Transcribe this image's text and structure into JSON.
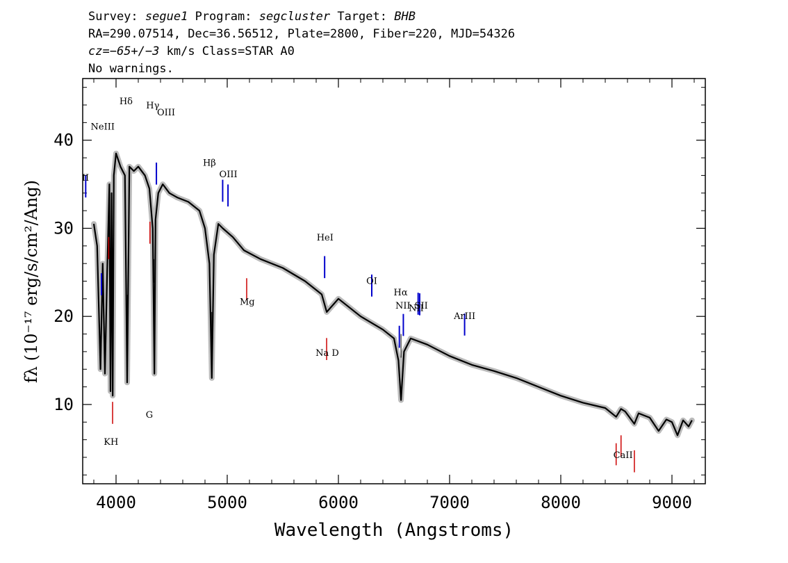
{
  "header": {
    "survey_label": "Survey:",
    "survey": "segue1",
    "program_label": "Program:",
    "program": "segcluster",
    "target_label": "Target:",
    "target": "BHB",
    "line2": "RA=290.07514, Dec=36.56512, Plate=2800, Fiber=220, MJD=54326",
    "cz_label": "cz=",
    "cz_value": "−65+/−3",
    "cz_rest": " km/s Class=STAR A0",
    "line4": "No warnings."
  },
  "chart_data": {
    "type": "line",
    "xlabel": "Wavelength (Angstroms)",
    "ylabel": "fλ (10⁻¹⁷ erg/s/cm²/Ang)",
    "xlim": [
      3700,
      9300
    ],
    "ylim": [
      1,
      47
    ],
    "x_ticks": [
      4000,
      5000,
      6000,
      7000,
      8000,
      9000
    ],
    "y_ticks": [
      10,
      20,
      30,
      40
    ],
    "grid": false,
    "series": [
      {
        "line_color": "#000000",
        "error_band_color": "#bbbbbb",
        "x": [
          3800,
          3830,
          3860,
          3880,
          3900,
          3920,
          3940,
          3950,
          3960,
          3970,
          3980,
          4000,
          4040,
          4080,
          4100,
          4120,
          4160,
          4200,
          4260,
          4300,
          4330,
          4345,
          4355,
          4380,
          4420,
          4480,
          4550,
          4650,
          4750,
          4800,
          4840,
          4861,
          4880,
          4920,
          4960,
          5050,
          5150,
          5300,
          5500,
          5700,
          5850,
          5895,
          6000,
          6200,
          6400,
          6500,
          6540,
          6563,
          6590,
          6650,
          6800,
          7000,
          7200,
          7400,
          7600,
          7800,
          8000,
          8200,
          8400,
          8498,
          8542,
          8580,
          8662,
          8700,
          8800,
          8880,
          8950,
          9000,
          9050,
          9100,
          9150,
          9180
        ],
        "y": [
          30.5,
          28,
          14,
          26,
          13.5,
          25,
          35,
          11.5,
          34,
          11,
          36,
          38.5,
          37,
          36,
          12.5,
          37,
          36.5,
          37,
          36,
          34.5,
          30,
          13.5,
          31,
          34,
          35,
          34,
          33.5,
          33,
          32,
          30,
          26,
          13,
          27,
          30.5,
          30,
          29,
          27.5,
          26.5,
          25.5,
          24,
          22.5,
          20.5,
          22,
          20,
          18.5,
          17.5,
          15,
          10.5,
          16,
          17.5,
          16.8,
          15.5,
          14.5,
          13.8,
          13,
          12,
          11,
          10.2,
          9.6,
          8.6,
          9.5,
          9.2,
          7.8,
          9,
          8.5,
          7,
          8.3,
          8.0,
          6.5,
          8.2,
          7.5,
          8.2
        ]
      }
    ],
    "emission_lines": [
      {
        "label": "NeIII",
        "x": 3869
      },
      {
        "label": "OII",
        "x": 3727
      },
      {
        "label": "OIII",
        "x": 4363
      },
      {
        "label": "OIII",
        "x": 4959
      },
      {
        "label": "OIII",
        "x": 5007
      },
      {
        "label": "HeI",
        "x": 5876
      },
      {
        "label": "OI",
        "x": 6300
      },
      {
        "label": "NII",
        "x": 6548
      },
      {
        "label": "NII",
        "x": 6584
      },
      {
        "label": "SII",
        "x": 6717
      },
      {
        "label": "SII",
        "x": 6731
      },
      {
        "label": "ArIII",
        "x": 7135
      }
    ],
    "emission_labels": [
      {
        "text": "NeIII",
        "x": 3880,
        "y": 41.2
      },
      {
        "text": "II",
        "x": 3725,
        "y": 35.4
      },
      {
        "text": "OIII",
        "x": 4450,
        "y": 42.8
      },
      {
        "text": "OIII",
        "x": 5010,
        "y": 35.8
      },
      {
        "text": "HeI",
        "x": 5880,
        "y": 28.6
      },
      {
        "text": "OI",
        "x": 6300,
        "y": 23.7
      },
      {
        "text": "NII",
        "x": 6580,
        "y": 20.9
      },
      {
        "text": "NII",
        "x": 6700,
        "y": 20.6
      },
      {
        "text": "SII",
        "x": 6745,
        "y": 20.9
      },
      {
        "text": "ArIII",
        "x": 7135,
        "y": 19.7
      }
    ],
    "balmer_lines": [
      {
        "label": "Hδ",
        "x": 4102
      },
      {
        "label": "Hγ",
        "x": 4340
      },
      {
        "label": "Hβ",
        "x": 4861
      },
      {
        "label": "Hα",
        "x": 6563
      }
    ],
    "balmer_labels": [
      {
        "text": "Hδ",
        "x": 4090,
        "y": 44.1
      },
      {
        "text": "Hγ",
        "x": 4330,
        "y": 43.6
      },
      {
        "text": "Hβ",
        "x": 4840,
        "y": 37.1
      },
      {
        "text": "Hα",
        "x": 6560,
        "y": 22.4
      }
    ],
    "absorption_lines": [
      {
        "label": "K",
        "x": 3934
      },
      {
        "label": "H",
        "x": 3969
      },
      {
        "label": "G",
        "x": 4305
      },
      {
        "label": "Mg",
        "x": 5175
      },
      {
        "label": "Na D",
        "x": 5894
      },
      {
        "label": "CaII",
        "x": 8498
      },
      {
        "label": "CaII",
        "x": 8542
      },
      {
        "label": "CaII",
        "x": 8662
      }
    ],
    "absorption_labels": [
      {
        "text": "KH",
        "x": 3955,
        "y": 5.4
      },
      {
        "text": "G",
        "x": 4300,
        "y": 8.5
      },
      {
        "text": "Mg",
        "x": 5180,
        "y": 21.3
      },
      {
        "text": "Na  D",
        "x": 5900,
        "y": 15.5
      },
      {
        "text": "CaII",
        "x": 8560,
        "y": 3.9
      }
    ],
    "colors": {
      "emission": "#0000cc",
      "absorption": "#cc0000",
      "axes": "#000000"
    }
  }
}
